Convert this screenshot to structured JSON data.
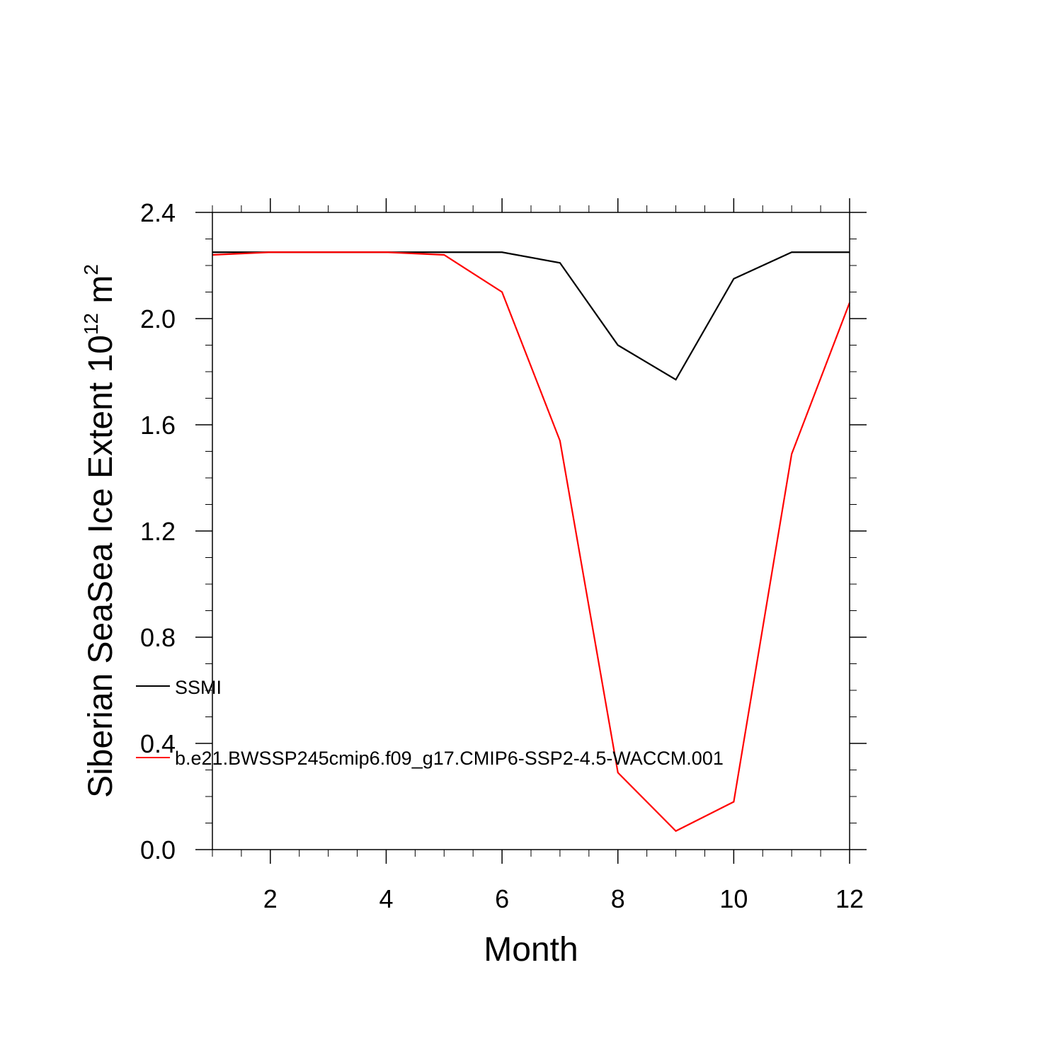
{
  "chart_data": {
    "type": "line",
    "xlabel": "Month",
    "ylabel_main": "Siberian SeaSea Ice Extent 10",
    "ylabel_exp": "12",
    "ylabel_unit": " m",
    "ylabel_unit_exp": "2",
    "xlim": [
      1,
      12
    ],
    "ylim": [
      0,
      2.4
    ],
    "x_ticks": [
      2,
      4,
      6,
      8,
      10,
      12
    ],
    "x_tick_labels": [
      "2",
      "4",
      "6",
      "8",
      "10",
      "12"
    ],
    "y_ticks": [
      0,
      0.4,
      0.8,
      1.2,
      1.6,
      2.0,
      2.4
    ],
    "y_tick_labels": [
      "0.0",
      "0.4",
      "0.8",
      "1.2",
      "1.6",
      "2.0",
      "2.4"
    ],
    "x": [
      1,
      2,
      3,
      4,
      5,
      6,
      7,
      8,
      9,
      10,
      11,
      12
    ],
    "series": [
      {
        "name": "SSMI",
        "color": "#000000",
        "values": [
          2.25,
          2.25,
          2.25,
          2.25,
          2.25,
          2.25,
          2.21,
          1.9,
          1.77,
          2.15,
          2.25,
          2.25
        ]
      },
      {
        "name": "b.e21.BWSSP245cmip6.f09_g17.CMIP6-SSP2-4.5-WACCM.001",
        "color": "#ff0000",
        "values": [
          2.24,
          2.25,
          2.25,
          2.25,
          2.24,
          2.1,
          1.54,
          0.29,
          0.07,
          0.18,
          1.49,
          2.06
        ]
      }
    ],
    "grid": false,
    "legend_position": "lower-left inside plot"
  }
}
